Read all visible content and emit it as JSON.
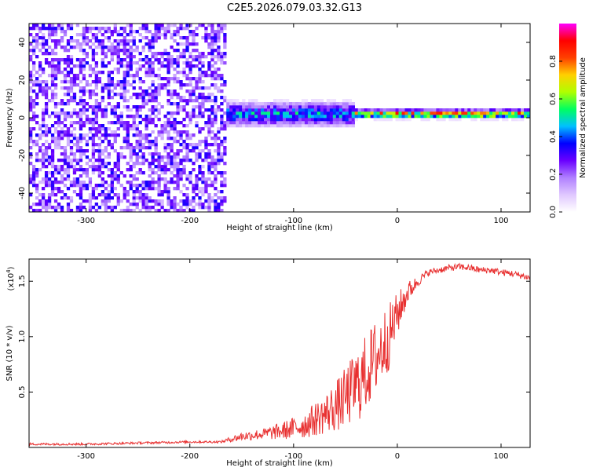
{
  "figure_title": "C2E5.2026.079.03.32.G13",
  "chart_data": [
    {
      "type": "heatmap",
      "name": "spectrogram",
      "xlabel": "Height of straight line (km)",
      "ylabel": "Frequency (Hz)",
      "xlim": [
        -355,
        128
      ],
      "ylim": [
        -50,
        50
      ],
      "xticks": [
        -300,
        -200,
        -100,
        0,
        100
      ],
      "yticks": [
        -40,
        -20,
        0,
        20,
        40
      ],
      "colorbar": {
        "label": "Normalized spectral amplitude",
        "range": [
          0,
          1
        ],
        "ticks": [
          0,
          0.2,
          0.4,
          0.6,
          0.8
        ],
        "tick_labels": [
          "0.0",
          "0.2",
          "0.4",
          "0.6",
          "0.8"
        ],
        "colors": [
          "#ffffff",
          "#e0c8ff",
          "#b080ff",
          "#6a00ff",
          "#0000ff",
          "#00c0ff",
          "#00ff60",
          "#b0ff00",
          "#ffd000",
          "#ff4000",
          "#ff0000",
          "#ff00ff"
        ]
      },
      "description_regions": [
        {
          "x_range": [
            -355,
            -165
          ],
          "freq_range": [
            -50,
            50
          ],
          "amplitude": 0.1,
          "kind": "noise"
        },
        {
          "x_range": [
            -165,
            -40
          ],
          "center_freq": 2,
          "spread_hz": 8,
          "amplitude": 0.5,
          "kind": "emerging-line"
        },
        {
          "x_range": [
            -40,
            128
          ],
          "center_freq": 2,
          "spread_hz": 3,
          "amplitude": 0.9,
          "kind": "line"
        }
      ]
    },
    {
      "type": "line",
      "name": "snr",
      "xlabel": "Height of straight line (km)",
      "ylabel": "SNR (10 * v/v)",
      "exponent_label": "(x10",
      "exponent_power": "4",
      "exponent_close": ")",
      "xlim": [
        -355,
        128
      ],
      "ylim": [
        0,
        1.7
      ],
      "xticks": [
        -300,
        -200,
        -100,
        0,
        100
      ],
      "yticks": [
        0.5,
        1.0,
        1.5
      ],
      "ytick_labels": [
        "0.5",
        "1.0",
        "1.5"
      ],
      "series": [
        {
          "name": "SNR",
          "color": "#e83030",
          "x": [
            -355,
            -300,
            -250,
            -200,
            -170,
            -150,
            -130,
            -110,
            -90,
            -70,
            -55,
            -45,
            -35,
            -25,
            -15,
            -8,
            0,
            5,
            10,
            20,
            30,
            40,
            50,
            60,
            70,
            80,
            90,
            100,
            110,
            120,
            128
          ],
          "y": [
            0.03,
            0.03,
            0.04,
            0.05,
            0.05,
            0.1,
            0.12,
            0.15,
            0.2,
            0.3,
            0.4,
            0.5,
            0.6,
            0.75,
            0.9,
            1.0,
            1.2,
            1.3,
            1.4,
            1.5,
            1.58,
            1.6,
            1.62,
            1.63,
            1.62,
            1.6,
            1.6,
            1.58,
            1.57,
            1.55,
            1.53
          ],
          "noise_amplitude": [
            0.01,
            0.01,
            0.01,
            0.01,
            0.01,
            0.04,
            0.05,
            0.08,
            0.12,
            0.18,
            0.25,
            0.3,
            0.35,
            0.35,
            0.35,
            0.3,
            0.2,
            0.15,
            0.1,
            0.05,
            0.03,
            0.03,
            0.03,
            0.03,
            0.03,
            0.03,
            0.03,
            0.03,
            0.03,
            0.03,
            0.03
          ]
        }
      ]
    }
  ]
}
